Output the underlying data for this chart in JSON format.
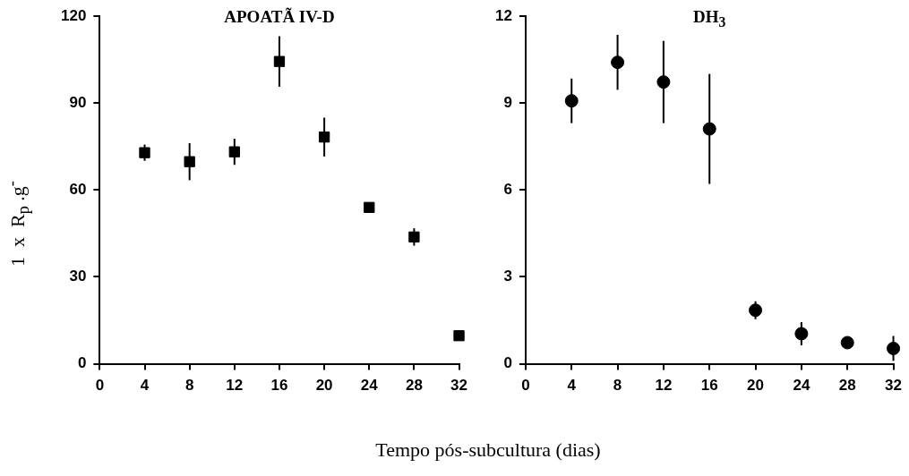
{
  "chart_data": [
    {
      "type": "scatter",
      "title": "APOATÃ IV-D",
      "ylabel": "1  x  R$_{p}$ .g$^{-}$",
      "xlabel": "Tempo pós-subcultura (dias)",
      "marker": "square",
      "grid": false,
      "legend": false,
      "x": [
        4,
        8,
        12,
        16,
        20,
        24,
        28,
        32
      ],
      "series": [
        {
          "color": "#000000",
          "values": [
            72.9,
            69.8,
            73.2,
            104.4,
            78.3,
            54,
            43.8,
            9.7
          ],
          "errors": [
            2.8,
            6.4,
            4.5,
            8.7,
            6.7,
            null,
            3,
            null
          ]
        }
      ],
      "xlim": [
        0,
        32
      ],
      "xticks": [
        0,
        4,
        8,
        12,
        16,
        20,
        24,
        28,
        32
      ],
      "ylim": [
        0,
        120
      ],
      "yticks": [
        0,
        30,
        60,
        90,
        120
      ]
    },
    {
      "type": "scatter",
      "title": "DH$_{3}$",
      "marker": "circle",
      "grid": false,
      "legend": false,
      "x": [
        4,
        8,
        12,
        16,
        20,
        24,
        28,
        32
      ],
      "series": [
        {
          "color": "#000000",
          "values": [
            9.08,
            10.41,
            9.73,
            8.11,
            1.85,
            1.04,
            0.73,
            0.53
          ],
          "errors": [
            0.77,
            0.95,
            1.42,
            1.9,
            0.31,
            0.4,
            null,
            0.43
          ]
        }
      ],
      "xlim": [
        0,
        32
      ],
      "xticks": [
        0,
        4,
        8,
        12,
        16,
        20,
        24,
        28,
        32
      ],
      "ylim": [
        0,
        12
      ],
      "yticks": [
        0,
        3,
        6,
        9,
        12
      ]
    }
  ]
}
